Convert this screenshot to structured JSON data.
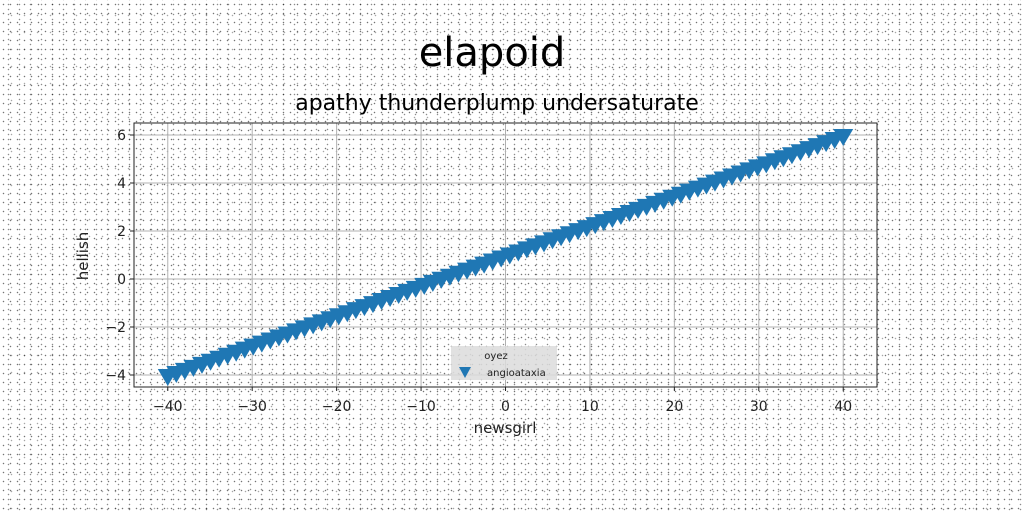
{
  "chart_data": {
    "type": "scatter",
    "title": "elapoid",
    "subtitle": "apathy thunderplump undersaturate",
    "xlabel": "newsgirl",
    "ylabel": "hellish",
    "xlim": [
      -44,
      44
    ],
    "ylim": [
      -4.5,
      6.5
    ],
    "xticks": [
      -40,
      -30,
      -20,
      -10,
      0,
      10,
      20,
      30,
      40
    ],
    "yticks": [
      -4,
      -2,
      0,
      2,
      4,
      6
    ],
    "xtick_labels": [
      "−40",
      "−30",
      "−20",
      "−10",
      "0",
      "10",
      "20",
      "30",
      "40"
    ],
    "ytick_labels": [
      "−4",
      "−2",
      "0",
      "2",
      "4",
      "6"
    ],
    "grid": true,
    "legend": {
      "title": "oyez",
      "placement": "lower-center"
    },
    "series": [
      {
        "name": "angioataxia",
        "marker": "triangle-down",
        "color": "#1f77b4",
        "x_start": -40,
        "x_end": 40,
        "count": 80,
        "y_start": -4.0,
        "y_end": 6.0
      }
    ]
  }
}
